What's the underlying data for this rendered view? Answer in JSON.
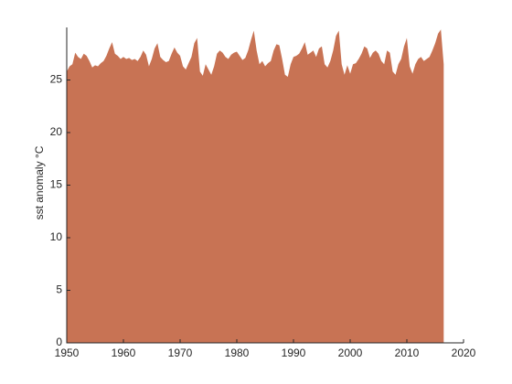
{
  "chart_data": {
    "type": "area",
    "y_label": "sst anomaly °C",
    "color": "#c87354",
    "xlim": [
      1950,
      2020
    ],
    "xticks": [
      1950,
      1960,
      1970,
      1980,
      1990,
      2000,
      2010,
      2020
    ],
    "ylim": [
      0,
      30
    ],
    "yticks": [
      0,
      5,
      10,
      15,
      20,
      25
    ],
    "x": [
      1950,
      1950.5,
      1951,
      1951.5,
      1952,
      1952.5,
      1953,
      1953.5,
      1954,
      1954.5,
      1955,
      1955.5,
      1956,
      1956.5,
      1957,
      1957.5,
      1958,
      1958.5,
      1959,
      1959.5,
      1960,
      1960.5,
      1961,
      1961.5,
      1962,
      1962.5,
      1963,
      1963.5,
      1964,
      1964.5,
      1965,
      1965.5,
      1966,
      1966.5,
      1967,
      1967.5,
      1968,
      1968.5,
      1969,
      1969.5,
      1970,
      1970.5,
      1971,
      1971.5,
      1972,
      1972.5,
      1973,
      1973.5,
      1974,
      1974.5,
      1975,
      1975.5,
      1976,
      1976.5,
      1977,
      1977.5,
      1978,
      1978.5,
      1979,
      1979.5,
      1980,
      1980.5,
      1981,
      1981.5,
      1982,
      1982.5,
      1983,
      1983.5,
      1984,
      1984.5,
      1985,
      1985.5,
      1986,
      1986.5,
      1987,
      1987.5,
      1988,
      1988.5,
      1989,
      1989.5,
      1990,
      1990.5,
      1991,
      1991.5,
      1992,
      1992.5,
      1993,
      1993.5,
      1994,
      1994.5,
      1995,
      1995.5,
      1996,
      1996.5,
      1997,
      1997.5,
      1998,
      1998.5,
      1999,
      1999.5,
      2000,
      2000.5,
      2001,
      2001.5,
      2002,
      2002.5,
      2003,
      2003.5,
      2004,
      2004.5,
      2005,
      2005.5,
      2006,
      2006.5,
      2007,
      2007.5,
      2008,
      2008.5,
      2009,
      2009.5,
      2010,
      2010.5,
      2011,
      2011.5,
      2012,
      2012.5,
      2013,
      2013.5,
      2014,
      2014.5,
      2015,
      2015.5,
      2016,
      2016.5
    ],
    "values": [
      25.8,
      26.3,
      26.5,
      27.6,
      27.2,
      27.0,
      27.5,
      27.3,
      26.8,
      26.2,
      26.4,
      26.3,
      26.6,
      26.8,
      27.3,
      28.0,
      28.6,
      27.5,
      27.3,
      27.0,
      27.2,
      27.0,
      27.1,
      26.9,
      27.0,
      26.8,
      27.2,
      27.8,
      27.4,
      26.3,
      27.0,
      28.0,
      28.5,
      27.2,
      26.9,
      26.7,
      26.8,
      27.5,
      28.1,
      27.6,
      27.3,
      26.3,
      26.0,
      26.6,
      27.2,
      28.5,
      29.0,
      25.8,
      25.4,
      26.5,
      26.0,
      25.5,
      26.3,
      27.5,
      27.8,
      27.6,
      27.2,
      27.0,
      27.4,
      27.6,
      27.7,
      27.3,
      26.9,
      27.1,
      27.8,
      28.8,
      29.7,
      27.8,
      26.5,
      26.8,
      26.3,
      26.6,
      26.8,
      27.8,
      28.4,
      28.3,
      27.0,
      25.5,
      25.3,
      26.5,
      27.2,
      27.3,
      27.5,
      28.0,
      28.6,
      27.4,
      27.6,
      27.8,
      27.2,
      28.0,
      28.2,
      26.5,
      26.2,
      26.8,
      27.8,
      29.2,
      29.7,
      26.5,
      25.5,
      26.4,
      25.6,
      26.5,
      26.6,
      27.0,
      27.5,
      28.2,
      28.0,
      27.1,
      27.6,
      27.8,
      27.5,
      26.8,
      26.5,
      27.8,
      27.6,
      25.8,
      25.5,
      26.5,
      27.0,
      28.2,
      29.0,
      26.3,
      25.6,
      26.5,
      27.0,
      27.2,
      26.8,
      27.0,
      27.2,
      27.8,
      28.5,
      29.4,
      29.8,
      26.5
    ]
  }
}
